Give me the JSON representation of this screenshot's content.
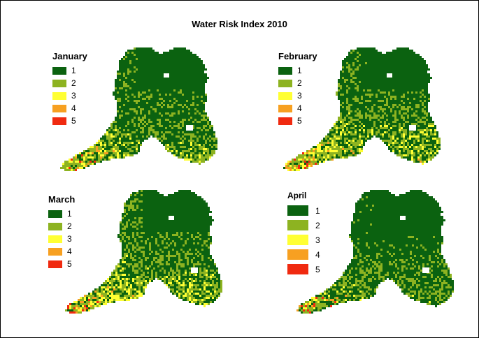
{
  "title": "Water Risk Index 2010",
  "legend_classes": [
    {
      "label": "1",
      "color": "#0b6210"
    },
    {
      "label": "2",
      "color": "#8db321"
    },
    {
      "label": "3",
      "color": "#ffff33"
    },
    {
      "label": "4",
      "color": "#f7a021"
    },
    {
      "label": "5",
      "color": "#f02a10"
    }
  ],
  "panels": [
    {
      "id": "january",
      "title": "January",
      "risk_mix": [
        0.56,
        0.25,
        0.13,
        0.045,
        0.015
      ]
    },
    {
      "id": "february",
      "title": "February",
      "risk_mix": [
        0.5,
        0.24,
        0.15,
        0.085,
        0.025
      ]
    },
    {
      "id": "march",
      "title": "March",
      "risk_mix": [
        0.5,
        0.25,
        0.16,
        0.07,
        0.02
      ]
    },
    {
      "id": "april",
      "title": "April",
      "risk_mix": [
        0.62,
        0.25,
        0.09,
        0.03,
        0.01
      ]
    }
  ]
}
